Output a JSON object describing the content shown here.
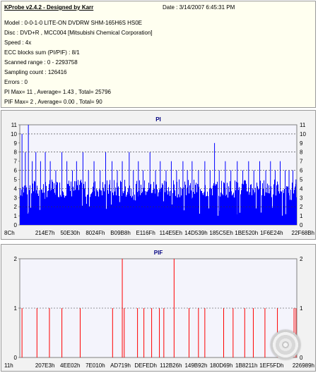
{
  "header": {
    "title": "KProbe v2.4.2 - Designed by Karr",
    "date": "Date : 3/14/2007 6:45:31 PM"
  },
  "info_lines": [
    "Model : 0-0-1-0 LITE-ON DVDRW SHM-165H6S HS0E",
    "Disc : DVD+R , MCC004 [Mitsubishi Chemical Corporation]",
    "Speed : 4x",
    "ECC blocks sum (PI/PIF) : 8/1",
    "Scanned range : 0 - 2293758",
    "Sampling count : 126416",
    "Errors : 0",
    "PI Max= 11 , Average= 1.43 , Total= 25796",
    "PIF Max= 2 , Average= 0.00 , Total= 90"
  ],
  "colors": {
    "pi_bars": "#0000ff",
    "pif_bars": "#ff0000",
    "chart_title": "#000080",
    "plot_bg": "#f4f4fc"
  },
  "icons": {
    "disc": "disc-icon"
  },
  "chart_data": [
    {
      "type": "bar",
      "title": "PI",
      "ylim": [
        0,
        11
      ],
      "yticks": [
        "0",
        "1",
        "2",
        "3",
        "4",
        "5",
        "6",
        "7",
        "8",
        "9",
        "10",
        "11"
      ],
      "dashed_grid_at": [
        2,
        4,
        6,
        8,
        10
      ],
      "x_tick_labels": [
        "8Ch",
        "214E7h",
        "50E30h",
        "8024Fh",
        "B09B8h",
        "E116Fh",
        "114E5Eh",
        "14D539h",
        "185C5Eh",
        "1BE520h",
        "1F6E24h",
        "22F68Bh"
      ],
      "baseline_range": [
        3,
        5
      ],
      "spikes": [
        {
          "x": 0.008,
          "v": 10
        },
        {
          "x": 0.02,
          "v": 8
        },
        {
          "x": 0.031,
          "v": 11
        },
        {
          "x": 0.045,
          "v": 7
        },
        {
          "x": 0.058,
          "v": 8
        },
        {
          "x": 0.075,
          "v": 7
        },
        {
          "x": 0.092,
          "v": 8
        },
        {
          "x": 0.11,
          "v": 7
        },
        {
          "x": 0.13,
          "v": 6
        },
        {
          "x": 0.152,
          "v": 8
        },
        {
          "x": 0.17,
          "v": 7
        },
        {
          "x": 0.19,
          "v": 6
        },
        {
          "x": 0.205,
          "v": 7
        },
        {
          "x": 0.228,
          "v": 8
        },
        {
          "x": 0.248,
          "v": 6
        },
        {
          "x": 0.268,
          "v": 7
        },
        {
          "x": 0.29,
          "v": 6
        },
        {
          "x": 0.31,
          "v": 8
        },
        {
          "x": 0.333,
          "v": 7
        },
        {
          "x": 0.352,
          "v": 6
        },
        {
          "x": 0.37,
          "v": 7
        },
        {
          "x": 0.395,
          "v": 8
        },
        {
          "x": 0.41,
          "v": 6
        },
        {
          "x": 0.428,
          "v": 7
        },
        {
          "x": 0.445,
          "v": 6
        },
        {
          "x": 0.47,
          "v": 8
        },
        {
          "x": 0.49,
          "v": 6
        },
        {
          "x": 0.507,
          "v": 7
        },
        {
          "x": 0.528,
          "v": 6
        },
        {
          "x": 0.547,
          "v": 7
        },
        {
          "x": 0.566,
          "v": 6
        },
        {
          "x": 0.589,
          "v": 7
        },
        {
          "x": 0.605,
          "v": 6
        },
        {
          "x": 0.622,
          "v": 7
        },
        {
          "x": 0.645,
          "v": 6
        },
        {
          "x": 0.668,
          "v": 7
        },
        {
          "x": 0.687,
          "v": 6
        },
        {
          "x": 0.703,
          "v": 9
        },
        {
          "x": 0.72,
          "v": 6
        },
        {
          "x": 0.742,
          "v": 7
        },
        {
          "x": 0.762,
          "v": 6
        },
        {
          "x": 0.785,
          "v": 7
        },
        {
          "x": 0.805,
          "v": 6
        },
        {
          "x": 0.826,
          "v": 7
        },
        {
          "x": 0.845,
          "v": 6
        },
        {
          "x": 0.866,
          "v": 7
        },
        {
          "x": 0.888,
          "v": 6
        },
        {
          "x": 0.905,
          "v": 7
        },
        {
          "x": 0.922,
          "v": 6
        },
        {
          "x": 0.94,
          "v": 7
        },
        {
          "x": 0.958,
          "v": 6
        },
        {
          "x": 0.972,
          "v": 6
        },
        {
          "x": 0.986,
          "v": 6
        },
        {
          "x": 0.997,
          "v": 5
        }
      ]
    },
    {
      "type": "bar",
      "title": "PIF",
      "ylim": [
        0,
        2
      ],
      "yticks": [
        "0",
        "1",
        "2"
      ],
      "dashed_grid_at": [
        1
      ],
      "x_tick_labels": [
        "11h",
        "207E3h",
        "4EE02h",
        "7E010h",
        "AD719h",
        "DEFEDh",
        "112B26h",
        "149B92h",
        "180D69h",
        "1B8211h",
        "1EF5FDh",
        "226989h"
      ],
      "bars": [
        {
          "x": 0.008,
          "v": 1
        },
        {
          "x": 0.062,
          "v": 1
        },
        {
          "x": 0.107,
          "v": 1
        },
        {
          "x": 0.152,
          "v": 1
        },
        {
          "x": 0.218,
          "v": 1
        },
        {
          "x": 0.335,
          "v": 1
        },
        {
          "x": 0.37,
          "v": 2
        },
        {
          "x": 0.377,
          "v": 1
        },
        {
          "x": 0.425,
          "v": 1
        },
        {
          "x": 0.448,
          "v": 1
        },
        {
          "x": 0.476,
          "v": 1
        },
        {
          "x": 0.504,
          "v": 1
        },
        {
          "x": 0.52,
          "v": 1
        },
        {
          "x": 0.557,
          "v": 2
        },
        {
          "x": 0.611,
          "v": 1
        },
        {
          "x": 0.645,
          "v": 1
        },
        {
          "x": 0.668,
          "v": 1
        },
        {
          "x": 0.736,
          "v": 1
        },
        {
          "x": 0.77,
          "v": 1
        },
        {
          "x": 0.812,
          "v": 1
        },
        {
          "x": 0.843,
          "v": 1
        },
        {
          "x": 0.885,
          "v": 1
        },
        {
          "x": 0.93,
          "v": 1
        },
        {
          "x": 0.99,
          "v": 1
        },
        {
          "x": 0.997,
          "v": 1
        }
      ]
    }
  ]
}
